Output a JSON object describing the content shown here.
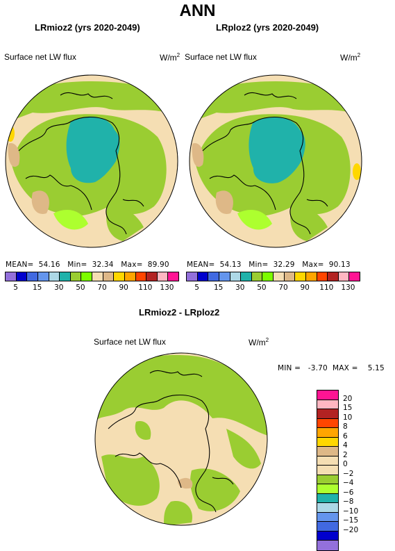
{
  "title": "ANN",
  "panels": [
    {
      "title": "LRmioz2 (yrs 2020-2049)",
      "variable": "Surface net LW flux",
      "units": "W/m",
      "units_sup": "2",
      "stats": {
        "mean_label": "MEAN=",
        "mean": "54.16",
        "min_label": "Min=",
        "min": "32.34",
        "max_label": "Max=",
        "max": "89.90"
      }
    },
    {
      "title": "LRploz2 (yrs 2020-2049)",
      "variable": "Surface net LW flux",
      "units": "W/m",
      "units_sup": "2",
      "stats": {
        "mean_label": "MEAN=",
        "mean": "54.13",
        "min_label": "Min=",
        "min": "32.29",
        "max_label": "Max=",
        "max": "90.13"
      }
    }
  ],
  "top_colorbar": {
    "colors": [
      "#9370db",
      "#0000cd",
      "#4169e1",
      "#6495ed",
      "#add8e6",
      "#20b2aa",
      "#9acd32",
      "#7cfc00",
      "#f5deb3",
      "#deb887",
      "#ffd700",
      "#ffa500",
      "#ff4500",
      "#b22222",
      "#ffb6c1",
      "#ff1493"
    ],
    "ticks": [
      "5",
      "15",
      "30",
      "50",
      "70",
      "90",
      "110",
      "130"
    ],
    "minor_ticks": [
      "15",
      "30",
      "50",
      "90",
      "110"
    ]
  },
  "diff_panel": {
    "title": "LRmioz2 - LRploz2",
    "variable": "Surface net LW flux",
    "units": "W/m",
    "units_sup": "2",
    "minmax": "MIN =   -3.70  MAX =    5.15"
  },
  "diff_colorbar": {
    "colors": [
      "#ff1493",
      "#ffb6c1",
      "#b22222",
      "#ff4500",
      "#ffa500",
      "#ffd700",
      "#deb887",
      "#f5deb3",
      "#f5deb3",
      "#9acd32",
      "#adff2f",
      "#20b2aa",
      "#add8e6",
      "#6495ed",
      "#4169e1",
      "#0000cd",
      "#9370db"
    ],
    "labels": [
      "20",
      "15",
      "10",
      "8",
      "6",
      "4",
      "2",
      "0",
      "−2",
      "−4",
      "−6",
      "−8",
      "−10",
      "−15",
      "−20"
    ]
  },
  "map_colors": {
    "ocean": "#f5deb3",
    "land_green": "#9acd32",
    "light_green": "#adff2f",
    "teal": "#20b2aa",
    "tan": "#deb887",
    "yellow": "#ffd700",
    "coast": "#000000"
  }
}
